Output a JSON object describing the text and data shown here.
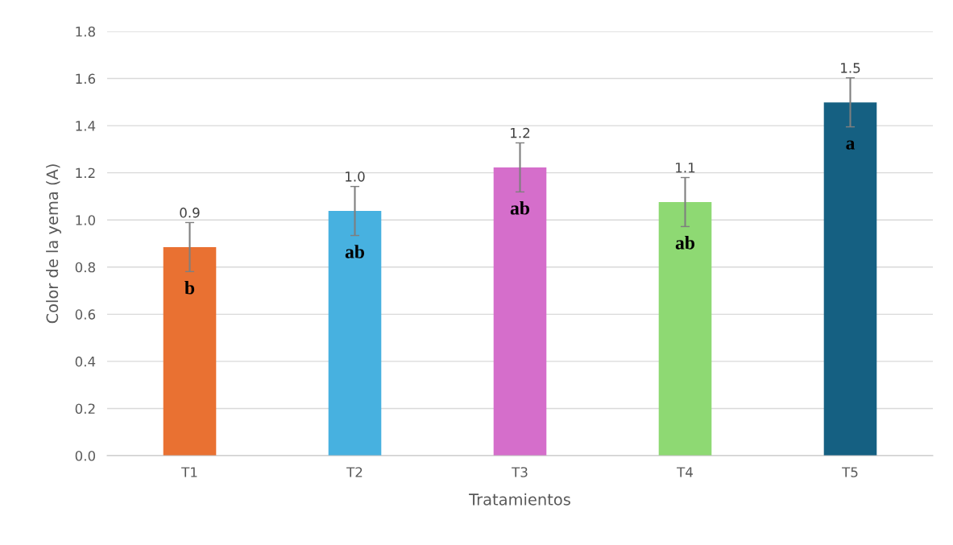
{
  "chart_data": {
    "type": "bar",
    "xlabel": "Tratamientos",
    "ylabel": "Color de la yema (A)",
    "categories": [
      "T1",
      "T2",
      "T3",
      "T4",
      "T5"
    ],
    "values": [
      0.885,
      1.038,
      1.223,
      1.076,
      1.499
    ],
    "colors": [
      "#e97132",
      "#47b1e0",
      "#d56ecb",
      "#8ed973",
      "#156082"
    ],
    "errors": [
      0.104,
      0.104,
      0.104,
      0.104,
      0.104
    ],
    "value_labels": [
      "0.9",
      "1.0",
      "1.2",
      "1.1",
      "1.5"
    ],
    "annotations": [
      "b",
      "ab",
      "ab",
      "ab",
      "a"
    ],
    "ylim": [
      0,
      1.8
    ],
    "yticks": [
      {
        "value": 0,
        "label": "0.0"
      },
      {
        "value": 0.2,
        "label": "0.2"
      },
      {
        "value": 0.4,
        "label": "0.4"
      },
      {
        "value": 0.6,
        "label": "0.6"
      },
      {
        "value": 0.8,
        "label": "0.8"
      },
      {
        "value": 1.0,
        "label": "1.0"
      },
      {
        "value": 1.2,
        "label": "1.2"
      },
      {
        "value": 1.4,
        "label": "1.4"
      },
      {
        "value": 1.6,
        "label": "1.6"
      },
      {
        "value": 1.8,
        "label": "1.8"
      }
    ],
    "grid": "y"
  }
}
